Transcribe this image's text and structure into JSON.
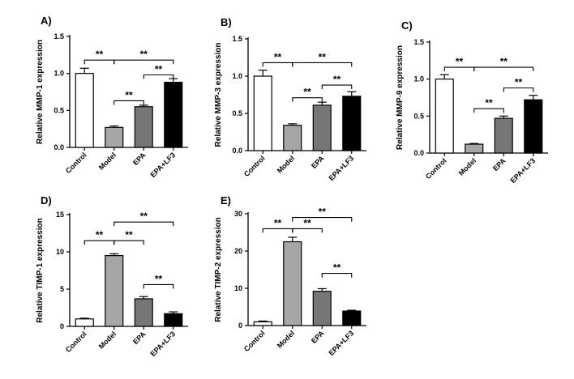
{
  "chart_data": [
    {
      "panel": "A)",
      "type": "bar",
      "ylabel": "Relative MMP-1 expression",
      "categories": [
        "Control",
        "Model",
        "EPA",
        "EPA+LF3"
      ],
      "values": [
        1.0,
        0.27,
        0.55,
        0.88
      ],
      "errors": [
        0.07,
        0.02,
        0.02,
        0.05
      ],
      "ylim": [
        0,
        1.5
      ],
      "yticks": [
        "0.0",
        "0.5",
        "1.0",
        "1.5"
      ],
      "bar_colors": [
        "#ffffff",
        "#a6a6a6",
        "#767676",
        "#000000"
      ],
      "significance": [
        {
          "from": 0,
          "to": 1,
          "text": "**",
          "level": 1.18
        },
        {
          "from": 1,
          "to": 3,
          "text": "**",
          "level": 1.18
        },
        {
          "from": 2,
          "to": 3,
          "text": "**",
          "level": 0.98
        },
        {
          "from": 1,
          "to": 2,
          "text": "**",
          "level": 0.63
        }
      ]
    },
    {
      "panel": "B)",
      "type": "bar",
      "ylabel": "Relative MMP-3 expression",
      "categories": [
        "Control",
        "Model",
        "EPA",
        "EPA+LF3"
      ],
      "values": [
        1.0,
        0.34,
        0.61,
        0.73
      ],
      "errors": [
        0.08,
        0.02,
        0.04,
        0.06
      ],
      "ylim": [
        0,
        1.5
      ],
      "yticks": [
        "0.0",
        "0.5",
        "1.0",
        "1.5"
      ],
      "bar_colors": [
        "#ffffff",
        "#a6a6a6",
        "#767676",
        "#000000"
      ],
      "significance": [
        {
          "from": 0,
          "to": 1,
          "text": "**",
          "level": 1.18
        },
        {
          "from": 1,
          "to": 3,
          "text": "**",
          "level": 1.18
        },
        {
          "from": 2,
          "to": 3,
          "text": "**",
          "level": 0.88
        },
        {
          "from": 1,
          "to": 2,
          "text": "**",
          "level": 0.71
        }
      ]
    },
    {
      "panel": "C)",
      "type": "bar",
      "ylabel": "Relative MMP-9 expression",
      "categories": [
        "Control",
        "Model",
        "EPA",
        "EPA+LF3"
      ],
      "values": [
        1.0,
        0.12,
        0.47,
        0.72
      ],
      "errors": [
        0.06,
        0.01,
        0.03,
        0.06
      ],
      "ylim": [
        0,
        1.5
      ],
      "yticks": [
        "0.0",
        "0.5",
        "1.0",
        "1.5"
      ],
      "bar_colors": [
        "#ffffff",
        "#a6a6a6",
        "#767676",
        "#000000"
      ],
      "significance": [
        {
          "from": 0,
          "to": 1,
          "text": "**",
          "level": 1.16
        },
        {
          "from": 1,
          "to": 3,
          "text": "**",
          "level": 1.16
        },
        {
          "from": 2,
          "to": 3,
          "text": "**",
          "level": 0.88
        },
        {
          "from": 1,
          "to": 2,
          "text": "**",
          "level": 0.6
        }
      ]
    },
    {
      "panel": "D)",
      "type": "bar",
      "ylabel": "Relative TIMP-1 expression",
      "categories": [
        "Control",
        "Model",
        "EPA",
        "EPA+LF3"
      ],
      "values": [
        1.0,
        9.5,
        3.7,
        1.7
      ],
      "errors": [
        0.1,
        0.25,
        0.3,
        0.25
      ],
      "ylim": [
        0,
        15
      ],
      "yticks": [
        "0",
        "5",
        "10",
        "15"
      ],
      "bar_colors": [
        "#ffffff",
        "#a6a6a6",
        "#767676",
        "#000000"
      ],
      "significance": [
        {
          "from": 0,
          "to": 1,
          "text": "**",
          "level": 11.5
        },
        {
          "from": 1,
          "to": 2,
          "text": "**",
          "level": 11.5
        },
        {
          "from": 1,
          "to": 3,
          "text": "**",
          "level": 14.0
        },
        {
          "from": 2,
          "to": 3,
          "text": "**",
          "level": 5.6
        }
      ]
    },
    {
      "panel": "E)",
      "type": "bar",
      "ylabel": "Relative TIMP-2 expression",
      "categories": [
        "Control",
        "Model",
        "EPA",
        "EPA+LF3"
      ],
      "values": [
        1.0,
        22.5,
        9.2,
        3.9
      ],
      "errors": [
        0.2,
        1.2,
        0.7,
        0.2
      ],
      "ylim": [
        0,
        30
      ],
      "yticks": [
        "0",
        "10",
        "20",
        "30"
      ],
      "bar_colors": [
        "#ffffff",
        "#a6a6a6",
        "#767676",
        "#000000"
      ],
      "significance": [
        {
          "from": 0,
          "to": 1,
          "text": "**",
          "level": 26.0
        },
        {
          "from": 1,
          "to": 2,
          "text": "**",
          "level": 26.0
        },
        {
          "from": 1,
          "to": 3,
          "text": "**",
          "level": 29.0
        },
        {
          "from": 2,
          "to": 3,
          "text": "**",
          "level": 14.0
        }
      ]
    }
  ]
}
